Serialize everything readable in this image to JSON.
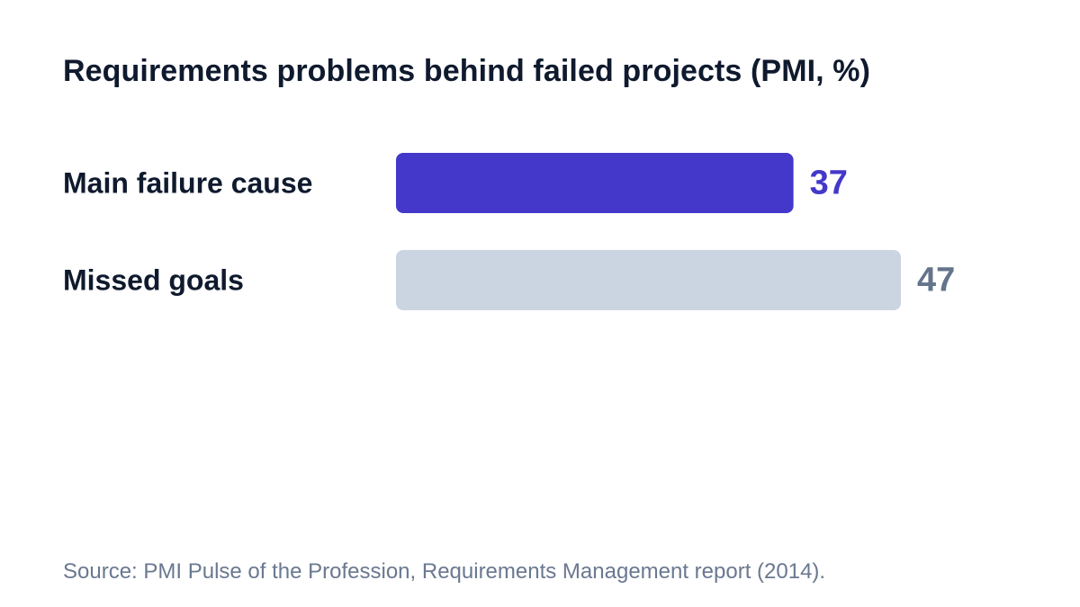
{
  "chart_data": {
    "type": "bar",
    "orientation": "horizontal",
    "title": "Requirements problems behind failed projects (PMI, %)",
    "categories": [
      "Main failure cause",
      "Missed goals"
    ],
    "values": [
      37,
      47
    ],
    "value_labels": [
      "37",
      "47"
    ],
    "xlim": [
      0,
      47
    ],
    "bar_colors": [
      "#4338ca",
      "#cbd5e1"
    ],
    "value_label_colors": [
      "#4338ca",
      "#64748b"
    ],
    "label_color": "#0f1a2e",
    "grid": false,
    "legend": "none"
  },
  "source": "Source: PMI Pulse of the Profession, Requirements Management report (2014)."
}
